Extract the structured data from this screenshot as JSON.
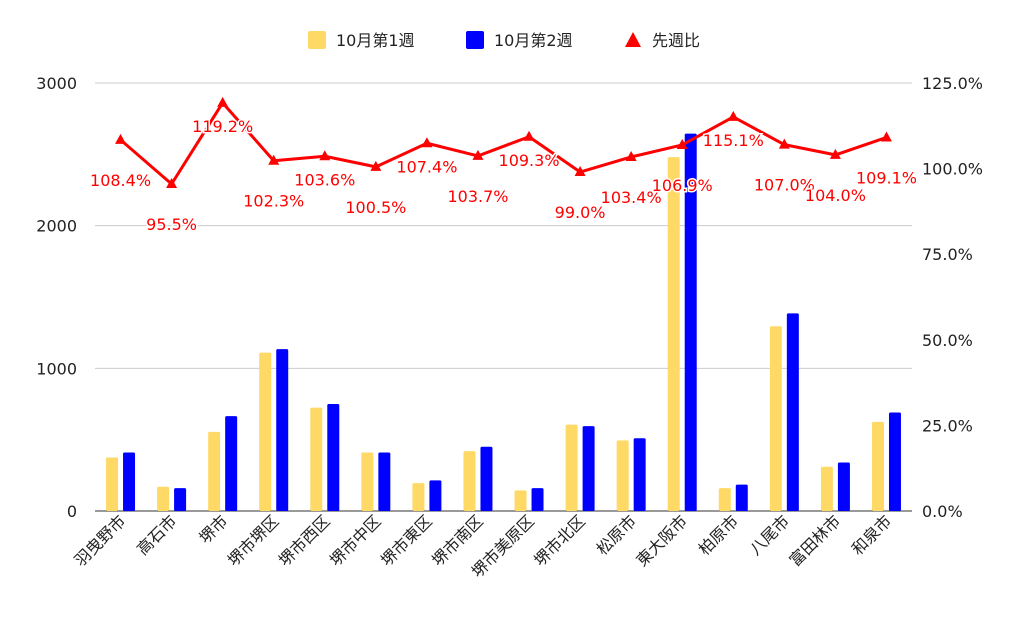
{
  "chart_data": {
    "type": "bar",
    "categories": [
      "羽曳野市",
      "高石市",
      "堺市",
      "堺市堺区",
      "堺市西区",
      "堺市中区",
      "堺市東区",
      "堺市南区",
      "堺市美原区",
      "堺市北区",
      "松原市",
      "東大阪市",
      "柏原市",
      "八尾市",
      "富田林市",
      "和泉市"
    ],
    "series": [
      {
        "name": "10月第1週",
        "type": "bar",
        "axis": "left",
        "color": "#FFD966",
        "values": [
          375,
          170,
          555,
          1110,
          725,
          410,
          195,
          420,
          145,
          605,
          495,
          2480,
          160,
          1295,
          310,
          625
        ]
      },
      {
        "name": "10月第2週",
        "type": "bar",
        "axis": "left",
        "color": "#0000FF",
        "values": [
          410,
          160,
          665,
          1135,
          750,
          410,
          215,
          450,
          160,
          595,
          510,
          2645,
          185,
          1385,
          340,
          690
        ]
      },
      {
        "name": "先週比",
        "type": "line",
        "axis": "right",
        "color": "#FF0000",
        "values": [
          108.4,
          95.5,
          119.2,
          102.3,
          103.6,
          100.5,
          107.4,
          103.7,
          109.3,
          99.0,
          103.4,
          106.9,
          115.1,
          107.0,
          104.0,
          109.1
        ],
        "labels": [
          "108.4%",
          "95.5%",
          "119.2%",
          "102.3%",
          "103.6%",
          "100.5%",
          "107.4%",
          "103.7%",
          "109.3%",
          "99.0%",
          "103.4%",
          "106.9%",
          "115.1%",
          "107.0%",
          "104.0%",
          "109.1%"
        ]
      }
    ],
    "y_left": {
      "ylim": [
        0,
        3000
      ],
      "ticks": [
        0,
        1000,
        2000,
        3000
      ],
      "tick_labels": [
        "0",
        "1000",
        "2000",
        "3000"
      ]
    },
    "y_right": {
      "ylim": [
        0,
        125
      ],
      "ticks": [
        0,
        25,
        50,
        75,
        100,
        125
      ],
      "tick_labels": [
        "0.0%",
        "25.0%",
        "50.0%",
        "75.0%",
        "100.0%",
        "125.0%"
      ]
    },
    "legend": {
      "position": "top",
      "items": [
        "10月第1週",
        "10月第2週",
        "先週比"
      ]
    },
    "grid": true,
    "title": "",
    "xlabel": "",
    "ylabel": ""
  }
}
